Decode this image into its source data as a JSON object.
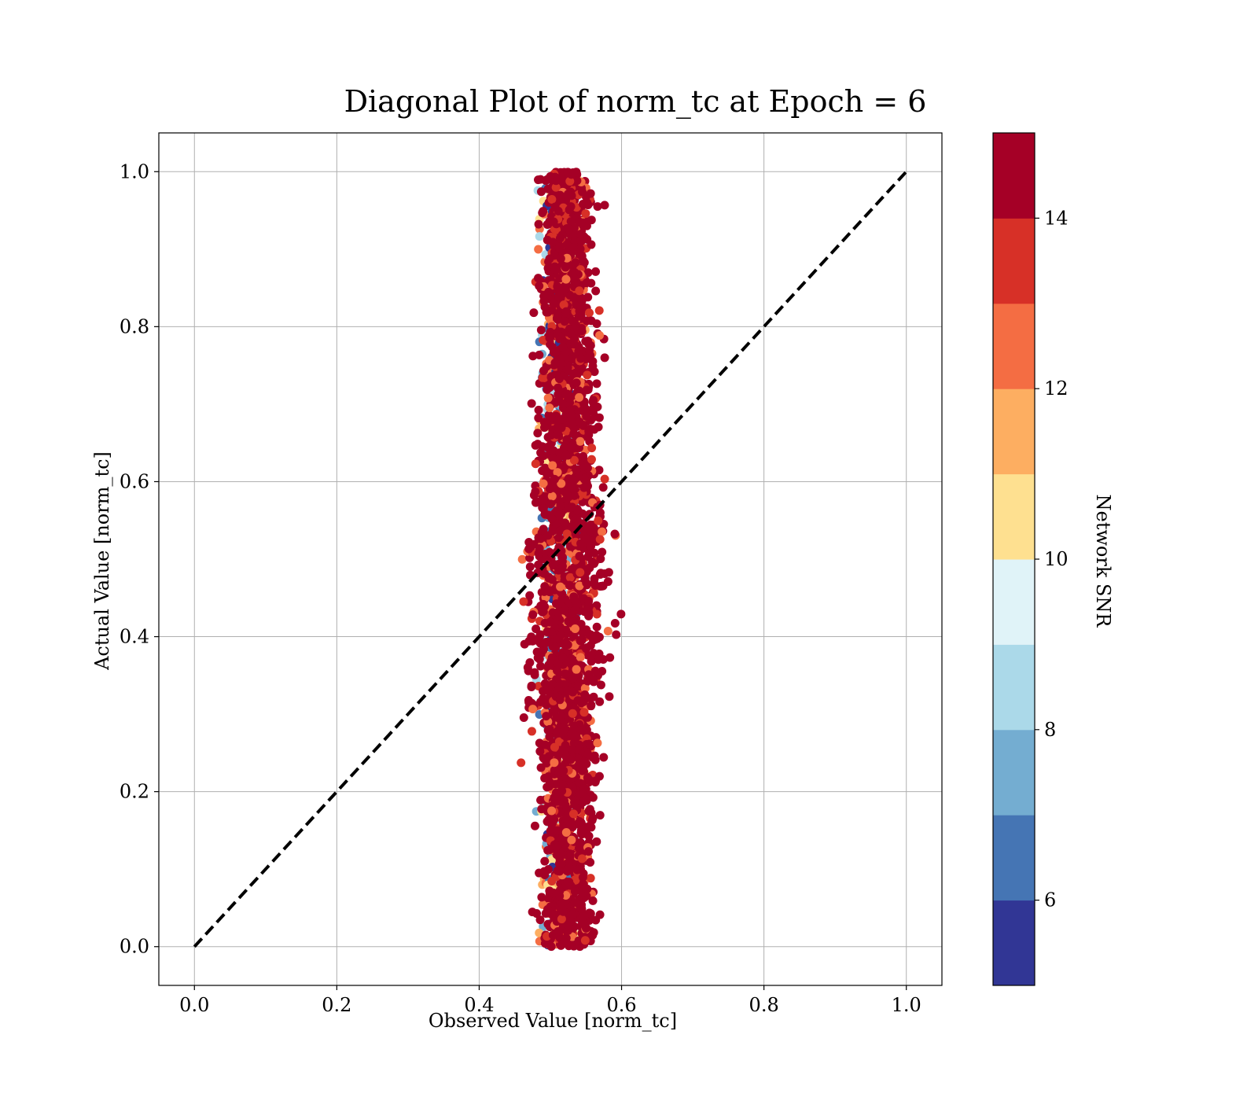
{
  "chart_data": {
    "type": "scatter",
    "title": "Diagonal Plot of norm_tc at Epoch = 6",
    "xlabel": "Observed Value [norm_tc]",
    "ylabel": "Actual Value [norm_tc]",
    "xlim": [
      -0.05,
      1.05
    ],
    "ylim": [
      -0.05,
      1.05
    ],
    "xticks": [
      0.0,
      0.2,
      0.4,
      0.6,
      0.8,
      1.0
    ],
    "yticks": [
      0.0,
      0.2,
      0.4,
      0.6,
      0.8,
      1.0
    ],
    "xtick_labels": [
      "0.0",
      "0.2",
      "0.4",
      "0.6",
      "0.8",
      "1.0"
    ],
    "ytick_labels": [
      "0.0",
      "0.2",
      "0.4",
      "0.6",
      "0.8",
      "1.0"
    ],
    "grid": true,
    "reference_line": {
      "x": [
        0.0,
        1.0
      ],
      "y": [
        0.0,
        1.0
      ],
      "style": "dashed",
      "color": "#000000"
    },
    "scatter_cloud": {
      "observed_center": 0.525,
      "observed_spread_low_snr": 0.03,
      "observed_spread_high_snr": 0.05,
      "actual_range": [
        0.0,
        1.0
      ],
      "dominant_color": "#a50026"
    },
    "colorbar": {
      "label": "Network SNR",
      "min": 5,
      "max": 15,
      "ticks": [
        6,
        8,
        10,
        12,
        14
      ],
      "tick_labels": [
        "6",
        "8",
        "10",
        "12",
        "14"
      ],
      "colors": [
        "#313695",
        "#4575b4",
        "#74add1",
        "#abd9e9",
        "#e0f3f8",
        "#fee090",
        "#fdae61",
        "#f46d43",
        "#d73027",
        "#a50026"
      ]
    }
  }
}
